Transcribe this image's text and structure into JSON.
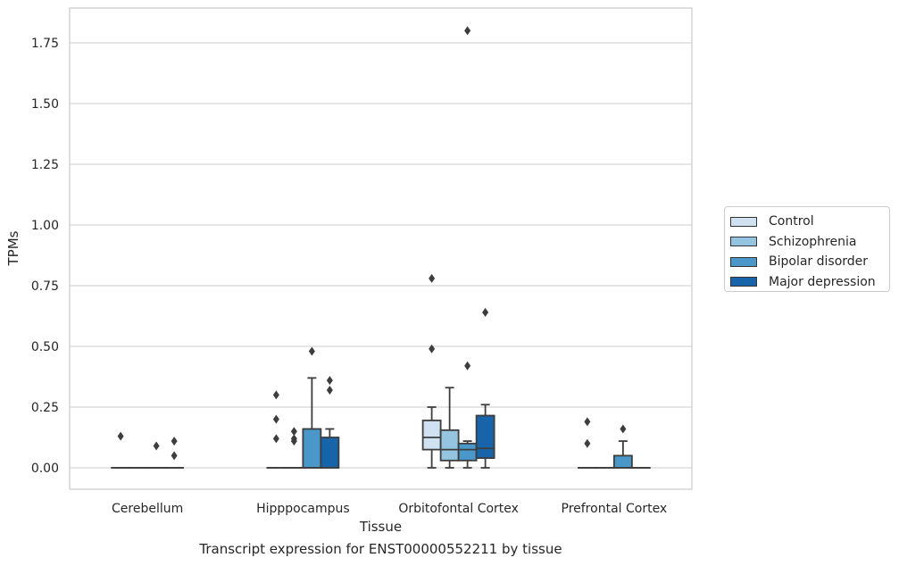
{
  "chart_data": {
    "type": "boxplot",
    "xlabel": "Tissue",
    "ylabel": "TPMs",
    "caption": "Transcript expression for ENST00000552211 by tissue",
    "ylim": [
      -0.09,
      1.89
    ],
    "yticks": [
      "0.00",
      "0.25",
      "0.50",
      "0.75",
      "1.00",
      "1.25",
      "1.50",
      "1.75"
    ],
    "grid": "horizontal",
    "legend_position": "right",
    "categories": [
      "Cerebellum",
      "Hipppocampus",
      "Orbitofontal Cortex",
      "Prefrontal Cortex"
    ],
    "series": [
      {
        "name": "Control",
        "color": "#d0e1f2",
        "boxes": [
          {
            "q1": 0,
            "median": 0,
            "q3": 0,
            "whislo": 0,
            "whishi": 0,
            "fliers": [
              0.13
            ]
          },
          {
            "q1": 0,
            "median": 0,
            "q3": 0,
            "whislo": 0,
            "whishi": 0,
            "fliers": [
              0.12,
              0.2,
              0.3
            ]
          },
          {
            "q1": 0.075,
            "median": 0.125,
            "q3": 0.195,
            "whislo": 0,
            "whishi": 0.25,
            "fliers": [
              0.49,
              0.78
            ]
          },
          {
            "q1": 0,
            "median": 0,
            "q3": 0,
            "whislo": 0,
            "whishi": 0,
            "fliers": [
              0.1,
              0.19
            ]
          }
        ]
      },
      {
        "name": "Schizophrenia",
        "color": "#94c4df",
        "boxes": [
          {
            "q1": 0,
            "median": 0,
            "q3": 0,
            "whislo": 0,
            "whishi": 0,
            "fliers": []
          },
          {
            "q1": 0,
            "median": 0,
            "q3": 0,
            "whislo": 0,
            "whishi": 0,
            "fliers": [
              0.11,
              0.12,
              0.15
            ]
          },
          {
            "q1": 0.03,
            "median": 0.075,
            "q3": 0.155,
            "whislo": 0,
            "whishi": 0.33,
            "fliers": []
          },
          {
            "q1": 0,
            "median": 0,
            "q3": 0,
            "whislo": 0,
            "whishi": 0,
            "fliers": []
          }
        ]
      },
      {
        "name": "Bipolar disorder",
        "color": "#4a98c9",
        "boxes": [
          {
            "q1": 0,
            "median": 0,
            "q3": 0,
            "whislo": 0,
            "whishi": 0,
            "fliers": [
              0.09
            ]
          },
          {
            "q1": 0,
            "median": 0,
            "q3": 0.16,
            "whislo": 0,
            "whishi": 0.37,
            "fliers": [
              0.48
            ]
          },
          {
            "q1": 0.03,
            "median": 0.075,
            "q3": 0.1,
            "whislo": 0,
            "whishi": 0.11,
            "fliers": [
              0.42,
              1.8
            ]
          },
          {
            "q1": 0,
            "median": 0,
            "q3": 0.05,
            "whislo": 0,
            "whishi": 0.11,
            "fliers": [
              0.16
            ]
          }
        ]
      },
      {
        "name": "Major depression",
        "color": "#1764ab",
        "boxes": [
          {
            "q1": 0,
            "median": 0,
            "q3": 0,
            "whislo": 0,
            "whishi": 0,
            "fliers": [
              0.05,
              0.11
            ]
          },
          {
            "q1": 0,
            "median": 0,
            "q3": 0.125,
            "whislo": 0,
            "whishi": 0.16,
            "fliers": [
              0.32,
              0.36
            ]
          },
          {
            "q1": 0.04,
            "median": 0.08,
            "q3": 0.215,
            "whislo": 0,
            "whishi": 0.26,
            "fliers": [
              0.64
            ]
          },
          {
            "q1": 0,
            "median": 0,
            "q3": 0,
            "whislo": 0,
            "whishi": 0,
            "fliers": []
          }
        ]
      }
    ]
  }
}
